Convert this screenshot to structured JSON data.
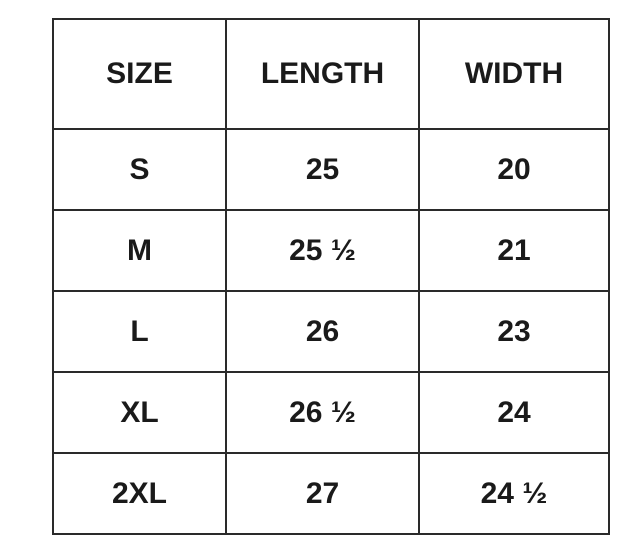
{
  "table": {
    "header": [
      "SIZE",
      "LENGTH",
      "WIDTH"
    ],
    "rows": [
      [
        "S",
        "25",
        "20"
      ],
      [
        "M",
        "25 ½",
        "21"
      ],
      [
        "L",
        "26",
        "23"
      ],
      [
        "XL",
        "26 ½",
        "24"
      ],
      [
        "2XL",
        "27",
        "24 ½"
      ]
    ]
  }
}
